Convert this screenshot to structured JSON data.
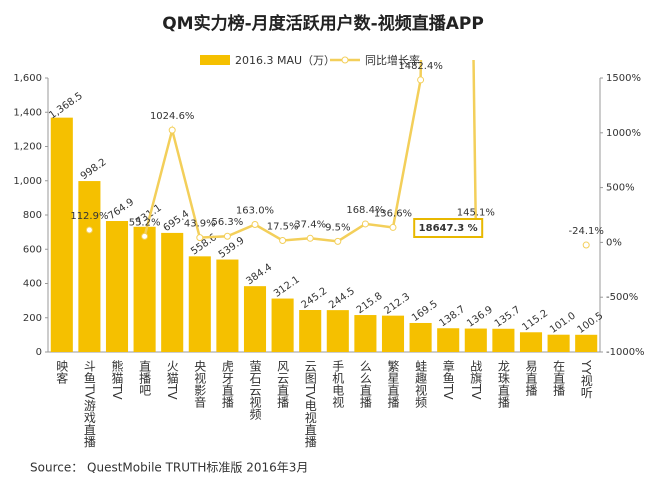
{
  "chart_data": {
    "type": "bar-line",
    "title": "QM实力榜-月度活跃用户数-视频直播APP",
    "source": "Source： QuestMobile TRUTH标准版 2016年3月",
    "categories": [
      "映客",
      "斗鱼TV游戏直播",
      "熊猫TV",
      "直播吧",
      "火猫TV",
      "央视影音",
      "虎牙直播",
      "萤石云视频",
      "风云直播",
      "云图TV电视直播",
      "手机电视",
      "么么直播",
      "繁星直播",
      "蛙趣视频",
      "章鱼TV",
      "战旗TV",
      "龙珠直播",
      "易直播",
      "在直播",
      "YY视听"
    ],
    "series": [
      {
        "name": "2016.3 MAU（万）",
        "type": "bar",
        "color": "#f5c000",
        "values": [
          1368.5,
          998.2,
          764.9,
          731.1,
          695.4,
          558.6,
          539.9,
          384.4,
          312.1,
          245.2,
          244.5,
          215.8,
          212.3,
          169.5,
          138.7,
          136.9,
          135.7,
          115.2,
          101.0,
          100.5
        ],
        "value_labels": [
          "1,368.5",
          "998.2",
          "764.9",
          "731.1",
          "695.4",
          "558.6",
          "539.9",
          "384.4",
          "312.1",
          "245.2",
          "244.5",
          "215.8",
          "212.3",
          "169.5",
          "138.7",
          "136.9",
          "135.7",
          "115.2",
          "101.0",
          "100.5"
        ]
      },
      {
        "name": "同比增长率",
        "type": "line",
        "axis": "y2",
        "color": "#f3cf5a",
        "values": [
          null,
          112.9,
          null,
          55.2,
          1024.6,
          43.9,
          56.3,
          163.0,
          17.5,
          37.4,
          9.5,
          168.4,
          136.6,
          1482.4,
          18647.3,
          145.1,
          null,
          null,
          null,
          -24.1
        ],
        "value_labels": [
          null,
          "112.9%",
          null,
          "55.2%",
          "1024.6%",
          "43.9%",
          "56.3%",
          "163.0%",
          "17.5%",
          "37.4%",
          "9.5%",
          "168.4%",
          "136.6%",
          "1482.4%",
          "18647.3 %",
          "145.1%",
          null,
          null,
          null,
          "-24.1%"
        ]
      }
    ],
    "ylim": [
      0,
      1600
    ],
    "yticks": [
      0,
      200,
      400,
      600,
      800,
      {
        "value": 1000,
        "label": "1,000"
      },
      {
        "value": 1200,
        "label": "1,200"
      },
      {
        "value": 1400,
        "label": "1,400"
      },
      {
        "value": 1600,
        "label": "1,600"
      }
    ],
    "y2lim": [
      -1000,
      1500
    ],
    "y2ticks": [
      {
        "value": -1000,
        "label": "-1000%"
      },
      {
        "value": -500,
        "label": "-500%"
      },
      {
        "value": 0,
        "label": "0%"
      },
      {
        "value": 500,
        "label": "500%"
      },
      {
        "value": 1000,
        "label": "1000%"
      },
      {
        "value": 1500,
        "label": "1500%"
      }
    ]
  }
}
